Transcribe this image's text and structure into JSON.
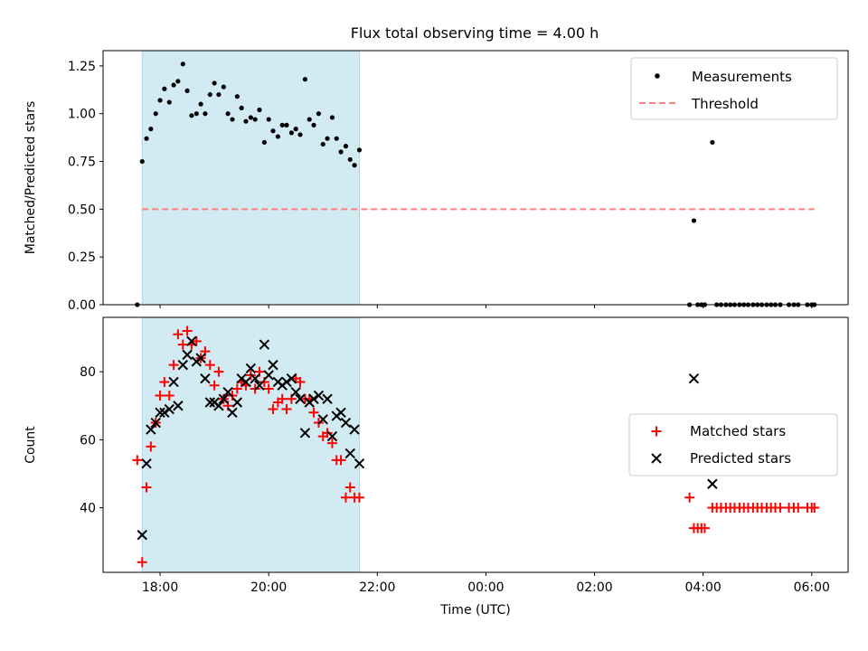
{
  "title": "Flux total observing time = 4.00 h",
  "colors": {
    "shade": "#add8e6",
    "threshold": "#ff7f7f",
    "measurement": "#000000",
    "matched": "#ff0000",
    "predicted": "#000000"
  },
  "chart_data": [
    {
      "type": "scatter",
      "name": "ratio-panel",
      "xlabel": "",
      "ylabel": "Matched/Predicted stars",
      "x_unit": "hours since 00:00 UTC",
      "xlim": [
        -7.05,
        6.67
      ],
      "ylim": [
        0,
        1.33
      ],
      "xticks": [
        -6,
        -4,
        -2,
        0,
        2,
        4,
        6
      ],
      "yticks": [
        0.0,
        0.25,
        0.5,
        0.75,
        1.0,
        1.25
      ],
      "ytick_labels": [
        "0.00",
        "0.25",
        "0.50",
        "0.75",
        "1.00",
        "1.25"
      ],
      "shaded_span": [
        -6.33,
        -2.33
      ],
      "legend": [
        "Measurements",
        "Threshold"
      ],
      "legend_position": "upper right",
      "threshold": {
        "value": 0.5,
        "x": [
          -6.33,
          6.05
        ]
      },
      "measurements": {
        "x": [
          -6.42,
          -6.33,
          -6.25,
          -6.17,
          -6.08,
          -6.0,
          -5.92,
          -5.83,
          -5.75,
          -5.67,
          -5.58,
          -5.5,
          -5.42,
          -5.33,
          -5.25,
          -5.17,
          -5.08,
          -5.0,
          -4.92,
          -4.83,
          -4.75,
          -4.67,
          -4.58,
          -4.5,
          -4.42,
          -4.33,
          -4.25,
          -4.17,
          -4.08,
          -4.0,
          -3.92,
          -3.83,
          -3.75,
          -3.67,
          -3.58,
          -3.5,
          -3.42,
          -3.33,
          -3.25,
          -3.17,
          -3.08,
          -3.0,
          -2.92,
          -2.83,
          -2.75,
          -2.67,
          -2.58,
          -2.5,
          -2.42,
          -2.33,
          3.75,
          3.83,
          3.9,
          3.97,
          4.03,
          4.17,
          4.25,
          4.33,
          4.42,
          4.5,
          4.58,
          4.67,
          4.75,
          4.83,
          4.92,
          5.0,
          5.08,
          5.17,
          5.25,
          5.33,
          5.42,
          5.58,
          5.67,
          5.75,
          5.92,
          6.0,
          6.05
        ],
        "y": [
          0.0,
          0.75,
          0.87,
          0.92,
          1.0,
          1.07,
          1.13,
          1.06,
          1.15,
          1.17,
          1.26,
          1.12,
          0.99,
          1.0,
          1.05,
          1.0,
          1.1,
          1.16,
          1.1,
          1.14,
          1.0,
          0.97,
          1.09,
          1.03,
          0.96,
          0.98,
          0.97,
          1.02,
          0.85,
          0.97,
          0.91,
          0.88,
          0.94,
          0.94,
          0.9,
          0.92,
          0.89,
          1.18,
          0.97,
          0.94,
          1.0,
          0.84,
          0.87,
          0.98,
          0.87,
          0.8,
          0.83,
          0.76,
          0.73,
          0.81,
          0.0,
          0.44,
          0.0,
          0.0,
          0.0,
          0.85,
          0.0,
          0.0,
          0.0,
          0.0,
          0.0,
          0.0,
          0.0,
          0.0,
          0.0,
          0.0,
          0.0,
          0.0,
          0.0,
          0.0,
          0.0,
          0.0,
          0.0,
          0.0,
          0.0,
          0.0,
          0.0
        ]
      }
    },
    {
      "type": "scatter",
      "name": "count-panel",
      "xlabel": "Time (UTC)",
      "ylabel": "Count",
      "x_unit": "hours since 00:00 UTC",
      "xlim": [
        -7.05,
        6.67
      ],
      "ylim": [
        21,
        96
      ],
      "xticks": [
        -6,
        -4,
        -2,
        0,
        2,
        4,
        6
      ],
      "xtick_labels": [
        "18:00",
        "20:00",
        "22:00",
        "00:00",
        "02:00",
        "04:00",
        "06:00"
      ],
      "yticks": [
        40,
        60,
        80
      ],
      "ytick_labels": [
        "40",
        "60",
        "80"
      ],
      "shaded_span": [
        -6.33,
        -2.33
      ],
      "legend": [
        "Matched stars",
        "Predicted stars"
      ],
      "legend_position": "center right",
      "series": [
        {
          "name": "Matched stars",
          "marker": "+",
          "x": [
            -6.42,
            -6.33,
            -6.25,
            -6.17,
            -6.08,
            -6.0,
            -5.92,
            -5.83,
            -5.75,
            -5.67,
            -5.58,
            -5.5,
            -5.42,
            -5.33,
            -5.25,
            -5.17,
            -5.08,
            -5.0,
            -4.92,
            -4.83,
            -4.75,
            -4.67,
            -4.58,
            -4.5,
            -4.42,
            -4.33,
            -4.25,
            -4.17,
            -4.08,
            -4.0,
            -3.92,
            -3.83,
            -3.75,
            -3.67,
            -3.58,
            -3.5,
            -3.42,
            -3.33,
            -3.25,
            -3.17,
            -3.08,
            -3.0,
            -2.92,
            -2.83,
            -2.75,
            -2.67,
            -2.58,
            -2.5,
            -2.42,
            -2.33,
            3.75,
            3.83,
            3.9,
            3.97,
            4.03,
            4.17,
            4.25,
            4.33,
            4.42,
            4.5,
            4.58,
            4.67,
            4.75,
            4.83,
            4.92,
            5.0,
            5.08,
            5.17,
            5.25,
            5.33,
            5.42,
            5.58,
            5.67,
            5.75,
            5.92,
            6.0,
            6.05
          ],
          "y": [
            54,
            24,
            46,
            58,
            65,
            73,
            77,
            73,
            82,
            91,
            88,
            92,
            88,
            89,
            84,
            86,
            82,
            76,
            80,
            72,
            70,
            73,
            75,
            77,
            76,
            79,
            75,
            80,
            77,
            75,
            69,
            71,
            72,
            69,
            72,
            78,
            77,
            72,
            72,
            68,
            65,
            61,
            62,
            59,
            54,
            54,
            43,
            46,
            43,
            43,
            43,
            34,
            34,
            34,
            34,
            40,
            40,
            40,
            40,
            40,
            40,
            40,
            40,
            40,
            40,
            40,
            40,
            40,
            40,
            40,
            40,
            40,
            40,
            40,
            40,
            40,
            40
          ]
        },
        {
          "name": "Predicted stars",
          "marker": "x",
          "x": [
            -6.33,
            -6.25,
            -6.17,
            -6.08,
            -6.0,
            -5.92,
            -5.83,
            -5.75,
            -5.67,
            -5.58,
            -5.5,
            -5.42,
            -5.33,
            -5.25,
            -5.17,
            -5.08,
            -5.0,
            -4.92,
            -4.83,
            -4.75,
            -4.67,
            -4.58,
            -4.5,
            -4.42,
            -4.33,
            -4.25,
            -4.17,
            -4.08,
            -4.0,
            -3.92,
            -3.83,
            -3.75,
            -3.67,
            -3.58,
            -3.5,
            -3.42,
            -3.33,
            -3.25,
            -3.17,
            -3.08,
            -3.0,
            -2.92,
            -2.83,
            -2.75,
            -2.67,
            -2.58,
            -2.5,
            -2.42,
            -2.33,
            3.83,
            4.17
          ],
          "y": [
            32,
            53,
            63,
            65,
            68,
            68,
            69,
            77,
            70,
            82,
            85,
            89,
            83,
            84,
            78,
            71,
            71,
            70,
            72,
            74,
            68,
            71,
            78,
            77,
            81,
            78,
            76,
            88,
            79,
            82,
            77,
            76,
            77,
            78,
            74,
            72,
            62,
            71,
            72,
            73,
            66,
            72,
            61,
            67,
            68,
            65,
            56,
            63,
            53,
            78,
            47
          ]
        }
      ]
    }
  ]
}
